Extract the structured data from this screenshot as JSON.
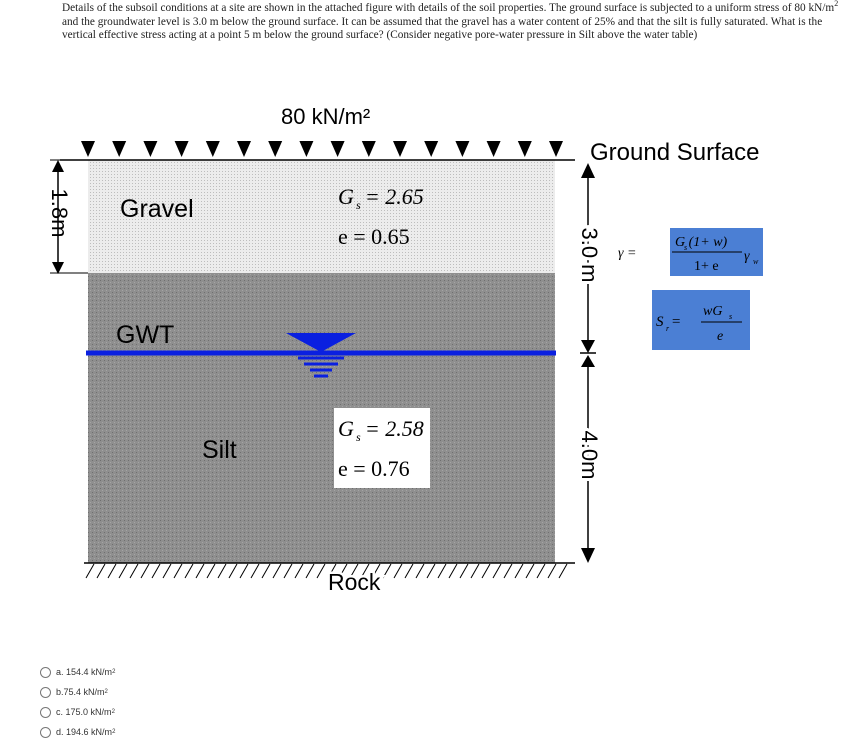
{
  "question": {
    "part1": "Details of the subsoil conditions at a site are shown in the attached figure with details of the soil properties. The ground surface is subjected to a uniform stress of 80 kN/m",
    "sup": "2",
    "part2": " and the groundwater level is 3.0 m below the ground surface. It can be assumed that the gravel has a water content of 25% and that the silt is fully saturated. What is the vertical effective stress acting at a point 5 m below the ground surface? (Consider negative pore-water pressure in Silt above the water table)"
  },
  "figure": {
    "surcharge": "80 kN/m²",
    "ground_surface": "Ground Surface",
    "gravel": "Gravel",
    "gravel_gs": "G  = 2.65",
    "gravel_gs_sub": "s",
    "gravel_e": "e = 0.65",
    "gwt": "GWT",
    "silt": "Silt",
    "silt_gs": "G  = 2.58",
    "silt_gs_sub": "s",
    "silt_e": "e = 0.76",
    "rock": "Rock",
    "dim_left": "1.8m",
    "dim_top": "3.0 m",
    "dim_bottom": "4.0m",
    "formula_gamma": {
      "lhs": "γ =",
      "num": "G (1+ w)",
      "num_sub": "s",
      "den": "1+ e",
      "rhs": "γ",
      "rhs_sub": "w"
    },
    "formula_sr": {
      "lhs": "S  =",
      "lhs_sub": "r",
      "num": "wG",
      "num_sub": "s",
      "den": "e"
    },
    "colors": {
      "gravel": "#e8e8e8",
      "silt": "#8e8e8e",
      "water": "#0a20e0",
      "formula_box": "#4b7fd4"
    }
  },
  "answers": [
    {
      "letter": "a.",
      "value": "154.4 kN/m",
      "sup": "2"
    },
    {
      "letter": "b.",
      "value": "75.4 kN/m",
      "sup": "2"
    },
    {
      "letter": "c.",
      "value": "175.0 kN/m",
      "sup": "2"
    },
    {
      "letter": "d.",
      "value": "194.6 kN/m",
      "sup": "2"
    }
  ]
}
